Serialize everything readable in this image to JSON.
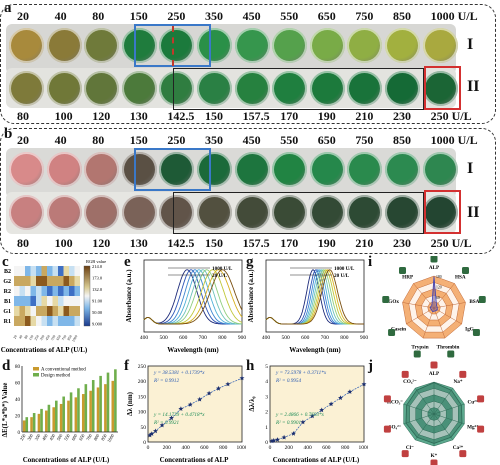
{
  "panel_labels": {
    "a": "a",
    "b": "b",
    "c": "c",
    "d": "d",
    "e": "e",
    "f": "f",
    "g": "g",
    "h": "h",
    "i": "i",
    "j": "j"
  },
  "panel_a": {
    "top_concentrations": [
      "20",
      "40",
      "80",
      "150",
      "250",
      "350",
      "450",
      "550",
      "650",
      "750",
      "850",
      "1000 U/L"
    ],
    "bottom_concentrations": [
      "80",
      "100",
      "120",
      "130",
      "142.5",
      "150",
      "157.5",
      "170",
      "190",
      "210",
      "230",
      "250 U/L"
    ],
    "row_labels": [
      "I",
      "II"
    ],
    "top_colors": [
      "#a88a3c",
      "#8a7a38",
      "#6f7a3a",
      "#1f7c3d",
      "#1b7a3c",
      "#2a9048",
      "#36964d",
      "#55a14c",
      "#79ab47",
      "#8fae44",
      "#a2b03f",
      "#a9a93f"
    ],
    "bottom_colors": [
      "#7e7a3a",
      "#707838",
      "#61763a",
      "#4c7a3b",
      "#2f7d40",
      "#2a8044",
      "#26813f",
      "#1f7f3f",
      "#1c7a3c",
      "#19733a",
      "#156a36",
      "#1b6535"
    ]
  },
  "panel_b": {
    "top_concentrations": [
      "20",
      "40",
      "80",
      "150",
      "250",
      "350",
      "450",
      "550",
      "650",
      "750",
      "850",
      "1000 U/L"
    ],
    "bottom_concentrations": [
      "80",
      "100",
      "120",
      "130",
      "142.5",
      "150",
      "157.5",
      "170",
      "190",
      "210",
      "230",
      "250 U/L"
    ],
    "row_labels": [
      "I",
      "II"
    ],
    "top_colors": [
      "#d88a8a",
      "#d08282",
      "#b27670",
      "#5a5044",
      "#1e5a36",
      "#1b6a3a",
      "#1d753e",
      "#218443",
      "#25884b",
      "#2a8a4d",
      "#2c8a50",
      "#2e8750"
    ],
    "bottom_colors": [
      "#c88080",
      "#bb7a78",
      "#9e6f68",
      "#7a6258",
      "#615449",
      "#52503f",
      "#434b39",
      "#3a4b36",
      "#334a35",
      "#2d4a34",
      "#274732",
      "#234531"
    ]
  },
  "panel_c": {
    "y_categories": [
      "B2",
      "G2",
      "R2",
      "B1",
      "G1",
      "R1"
    ],
    "x_label": "Concentrations of ALP (U/L)",
    "colorbar_title": "RGB value",
    "colorbar_ticks": [
      "214.0",
      "173.0",
      "132.0",
      "91.00",
      "50.00",
      "9.000"
    ],
    "matrix": [
      [
        0.55,
        0.45,
        0.3,
        0.35,
        0.25,
        0.7,
        0.2,
        0.4,
        0.15,
        0.6,
        0.35,
        0.5
      ],
      [
        0.75,
        0.8,
        0.7,
        0.65,
        0.9,
        0.85,
        0.8,
        0.75,
        0.7,
        0.85,
        0.8,
        0.6
      ],
      [
        0.45,
        0.4,
        0.55,
        0.3,
        0.35,
        0.2,
        0.15,
        0.25,
        0.1,
        0.2,
        0.15,
        0.25
      ],
      [
        0.3,
        0.25,
        0.2,
        0.15,
        0.35,
        0.6,
        0.55,
        0.65,
        0.4,
        0.5,
        0.45,
        0.55
      ],
      [
        0.65,
        0.7,
        0.6,
        0.55,
        0.8,
        0.75,
        0.85,
        0.7,
        0.65,
        0.9,
        0.8,
        0.75
      ],
      [
        0.8,
        0.75,
        0.85,
        0.6,
        0.55,
        0.4,
        0.3,
        0.35,
        0.25,
        0.2,
        0.3,
        0.35
      ]
    ]
  },
  "chart_data": [
    {
      "type": "bar",
      "panel": "d",
      "categories": [
        "250",
        "300",
        "350",
        "400",
        "450",
        "500",
        "550",
        "600",
        "650",
        "700",
        "800",
        "850",
        "1000"
      ],
      "series": [
        {
          "name": "A conventional method",
          "values": [
            14,
            18,
            22,
            26,
            30,
            34,
            38,
            42,
            46,
            50,
            54,
            58,
            62
          ]
        },
        {
          "name": "Design method",
          "values": [
            18,
            23,
            28,
            33,
            38,
            43,
            48,
            53,
            58,
            63,
            68,
            72,
            76
          ]
        }
      ],
      "ylabel": "ΔE(L*a*b*) Value",
      "xlabel": "Concentrations of ALP (U/L)",
      "yticks": [
        "0",
        "20",
        "40",
        "60",
        "80"
      ],
      "ylim": [
        0,
        80
      ]
    },
    {
      "type": "line",
      "panel": "e",
      "xlabel": "Wavelength (nm)",
      "ylabel": "Absorbance (a.u.)",
      "xticks": [
        "400",
        "500",
        "600",
        "700",
        "800",
        "900"
      ],
      "xlim": [
        400,
        900
      ],
      "legend": [
        "1000 U/L",
        "20 U/L"
      ]
    },
    {
      "type": "scatter",
      "panel": "f",
      "xlabel": "Concentrations of ALP",
      "ylabel": "Δλ (nm)",
      "x": [
        20,
        40,
        80,
        150,
        250,
        350,
        450,
        550,
        650,
        750,
        850,
        1000
      ],
      "y": [
        22,
        27,
        36,
        55,
        79,
        109,
        123,
        140,
        160,
        176,
        190,
        210
      ],
      "xticks": [
        "0",
        "200",
        "400",
        "600",
        "800",
        "1000"
      ],
      "yticks": [
        "0",
        "50",
        "100",
        "150",
        "200",
        "250"
      ],
      "xlim": [
        0,
        1000
      ],
      "ylim": [
        0,
        250
      ],
      "fits": [
        {
          "equation": "y = 38.5381 + 0.1739*x",
          "r2": "R² = 0.9912"
        },
        {
          "equation": "y = 14.1739 + 0.4718*x",
          "r2": "R² = 0.9921"
        }
      ]
    },
    {
      "type": "line",
      "panel": "g",
      "xlabel": "Wavelength (nm)",
      "ylabel": "Absorbance (a.u.)",
      "xticks": [
        "400",
        "500",
        "600",
        "700",
        "800",
        "900"
      ],
      "xlim": [
        400,
        900
      ],
      "legend": [
        "1000 U/L",
        "20 U/L"
      ]
    },
    {
      "type": "scatter",
      "panel": "h",
      "xlabel": "Concentrations of ALP (U/L)",
      "ylabel": "Δλ/λ₀",
      "x": [
        20,
        40,
        80,
        150,
        250,
        350,
        450,
        550,
        650,
        750,
        850,
        1000
      ],
      "y": [
        0.06,
        0.1,
        0.15,
        0.3,
        0.55,
        1.3,
        1.7,
        2.1,
        2.5,
        2.9,
        3.3,
        3.8
      ],
      "xticks": [
        "0",
        "200",
        "400",
        "600",
        "800",
        "1000"
      ],
      "yticks": [
        "0",
        "1",
        "2",
        "3",
        "4",
        "5"
      ],
      "xlim": [
        0,
        1000
      ],
      "ylim": [
        0,
        5
      ],
      "fits": [
        {
          "equation": "y = 73.5978 + 0.3711*x",
          "r2": "R² = 0.9954"
        },
        {
          "equation": "y = 2.4866 + 0.7693*x",
          "r2": "R² = 0.9901"
        }
      ]
    }
  ],
  "radar_i": {
    "axes": [
      "ALP",
      "HSA",
      "BSA",
      "IgG",
      "Thrombin",
      "Trypsin",
      "Casein",
      "GOx",
      "HRP"
    ],
    "ring_ticks": [
      "180",
      "120",
      "60"
    ]
  },
  "radar_j": {
    "axes": [
      "ALP",
      "Na⁺",
      "Cu²⁺",
      "Mg²⁺",
      "Ca²⁺",
      "K⁺",
      "Cl⁻",
      "SO₄²⁻",
      "HCO₃⁻",
      "CO₃²⁻"
    ]
  }
}
